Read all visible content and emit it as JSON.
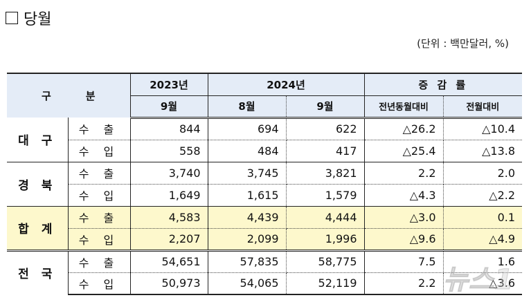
{
  "title": "당월",
  "unit": "(단위 : 백만달러, %)",
  "header": {
    "category": [
      "구",
      "분"
    ],
    "year_2023": "2023년",
    "year_2024": "2024년",
    "change_rate": "증 감 률",
    "months": [
      "9월",
      "8월",
      "9월"
    ],
    "yoy": "전년동월대비",
    "mom": "전월대비"
  },
  "rows": [
    {
      "region": "대 구",
      "items": [
        {
          "kind": "수 출",
          "v2023_9": "844",
          "v2024_8": "694",
          "v2024_9": "622",
          "yoy": "△26.2",
          "mom": "△10.4"
        },
        {
          "kind": "수 입",
          "v2023_9": "558",
          "v2024_8": "484",
          "v2024_9": "417",
          "yoy": "△25.4",
          "mom": "△13.8"
        }
      ]
    },
    {
      "region": "경 북",
      "items": [
        {
          "kind": "수 출",
          "v2023_9": "3,740",
          "v2024_8": "3,745",
          "v2024_9": "3,821",
          "yoy": "2.2",
          "mom": "2.0"
        },
        {
          "kind": "수 입",
          "v2023_9": "1,649",
          "v2024_8": "1,615",
          "v2024_9": "1,579",
          "yoy": "△4.3",
          "mom": "△2.2"
        }
      ]
    },
    {
      "region": "합 계",
      "highlight": true,
      "items": [
        {
          "kind": "수 출",
          "v2023_9": "4,583",
          "v2024_8": "4,439",
          "v2024_9": "4,444",
          "yoy": "△3.0",
          "mom": "0.1"
        },
        {
          "kind": "수 입",
          "v2023_9": "2,207",
          "v2024_8": "2,099",
          "v2024_9": "1,996",
          "yoy": "△9.6",
          "mom": "△4.9"
        }
      ]
    },
    {
      "region": "전 국",
      "items": [
        {
          "kind": "수 출",
          "v2023_9": "54,651",
          "v2024_8": "57,835",
          "v2024_9": "58,775",
          "yoy": "7.5",
          "mom": "1.6"
        },
        {
          "kind": "수 입",
          "v2023_9": "50,973",
          "v2024_8": "54,065",
          "v2024_9": "52,119",
          "yoy": "2.2",
          "mom": "△3.6"
        }
      ]
    }
  ],
  "watermark": "뉴스1",
  "colors": {
    "header_bg": "#e4ecf7",
    "highlight_bg": "#fdf8cc",
    "border": "#222222"
  }
}
